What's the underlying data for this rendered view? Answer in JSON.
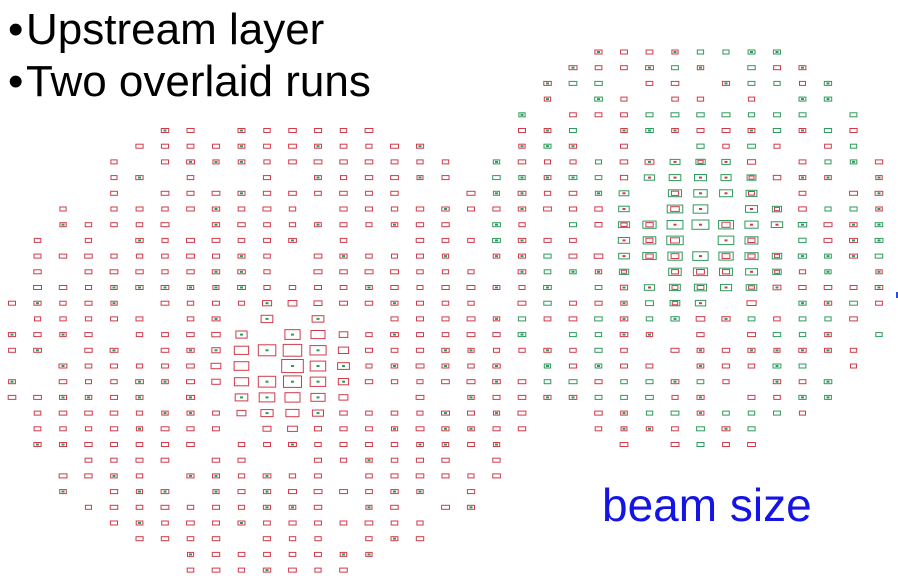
{
  "slide": {
    "bullets": [
      {
        "marker": "•",
        "text": "Upstream layer"
      },
      {
        "marker": "•",
        "text": "Two overlaid runs"
      }
    ],
    "annotation": "beam size"
  },
  "hit_map": {
    "runs": [
      {
        "id": "run-1",
        "color": "#d03a4a"
      },
      {
        "id": "run-2",
        "color": "#2e9a5c"
      }
    ],
    "text_color": "#000000",
    "annotation_color": "#1414e6"
  }
}
